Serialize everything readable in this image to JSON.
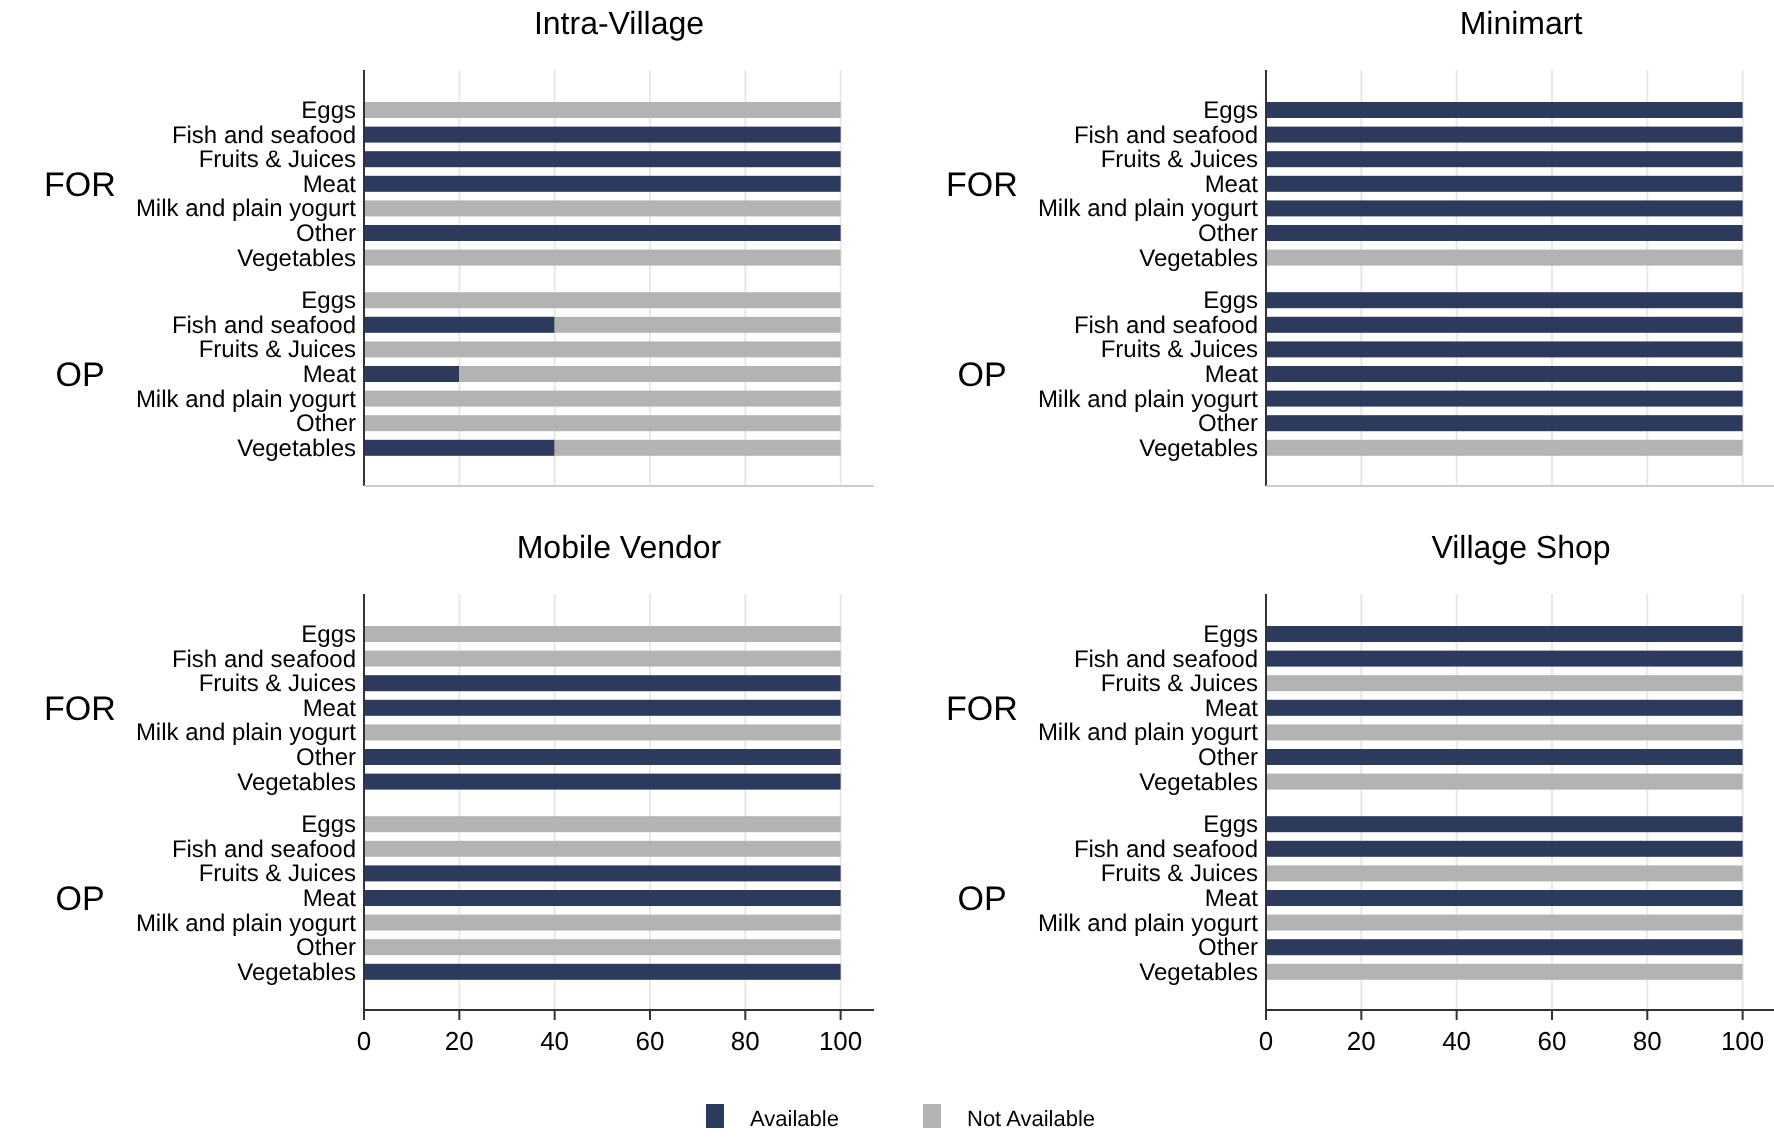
{
  "chart_data": [
    {
      "type": "bar",
      "title": "Intra-Village",
      "orientation": "horizontal",
      "stacked": true,
      "categories": [
        "Eggs",
        "Fish and seafood",
        "Fruits & Juices",
        "Meat",
        "Milk and plain yogurt",
        "Other",
        "Vegetables",
        "Eggs",
        "Fish and seafood",
        "Fruits & Juices",
        "Meat",
        "Milk and plain yogurt",
        "Other",
        "Vegetables"
      ],
      "annotations": [
        "FOR",
        "OP"
      ],
      "series": [
        {
          "color": "#2c3a5e",
          "values": [
            0,
            100,
            100,
            100,
            0,
            100,
            0,
            0,
            40,
            0,
            20,
            0,
            0,
            40
          ]
        },
        {
          "color": "#b3b3b3",
          "values": [
            100,
            0,
            0,
            0,
            100,
            0,
            100,
            100,
            60,
            100,
            80,
            100,
            100,
            60
          ]
        }
      ],
      "xlim": [
        0,
        107
      ],
      "xticks": [
        0,
        20,
        40,
        60,
        80,
        100
      ],
      "grid": "x",
      "tick_labels": "y"
    },
    {
      "type": "bar",
      "title": "Minimart",
      "orientation": "horizontal",
      "stacked": true,
      "categories": [
        "Eggs",
        "Fish and seafood",
        "Fruits & Juices",
        "Meat",
        "Milk and plain yogurt",
        "Other",
        "Vegetables",
        "Eggs",
        "Fish and seafood",
        "Fruits & Juices",
        "Meat",
        "Milk and plain yogurt",
        "Other",
        "Vegetables"
      ],
      "annotations": [
        "FOR",
        "OP"
      ],
      "series": [
        {
          "color": "#2c3a5e",
          "values": [
            100,
            100,
            100,
            100,
            100,
            100,
            0,
            100,
            100,
            100,
            100,
            100,
            100,
            0
          ]
        },
        {
          "color": "#b3b3b3",
          "values": [
            0,
            0,
            0,
            0,
            0,
            0,
            100,
            0,
            0,
            0,
            0,
            0,
            0,
            100
          ]
        }
      ],
      "xlim": [
        0,
        107
      ],
      "xticks": [
        0,
        20,
        40,
        60,
        80,
        100
      ],
      "grid": "x",
      "tick_labels": "y"
    },
    {
      "type": "bar",
      "title": "Mobile Vendor",
      "orientation": "horizontal",
      "stacked": true,
      "categories": [
        "Eggs",
        "Fish and seafood",
        "Fruits & Juices",
        "Meat",
        "Milk and plain yogurt",
        "Other",
        "Vegetables",
        "Eggs",
        "Fish and seafood",
        "Fruits & Juices",
        "Meat",
        "Milk and plain yogurt",
        "Other",
        "Vegetables"
      ],
      "annotations": [
        "FOR",
        "OP"
      ],
      "series": [
        {
          "name": "Available",
          "color": "#2c3a5e",
          "values": [
            0,
            0,
            100,
            100,
            0,
            100,
            100,
            0,
            0,
            100,
            100,
            0,
            0,
            100
          ]
        },
        {
          "name": "Not Available",
          "color": "#b3b3b3",
          "values": [
            100,
            100,
            0,
            0,
            100,
            0,
            0,
            100,
            100,
            0,
            0,
            100,
            100,
            0
          ]
        }
      ],
      "xlim": [
        0,
        107
      ],
      "xticks": [
        0,
        20,
        40,
        60,
        80,
        100
      ],
      "grid": "x",
      "legend": "bottom"
    },
    {
      "type": "bar",
      "title": "Village Shop",
      "orientation": "horizontal",
      "stacked": true,
      "categories": [
        "Eggs",
        "Fish and seafood",
        "Fruits & Juices",
        "Meat",
        "Milk and plain yogurt",
        "Other",
        "Vegetables",
        "Eggs",
        "Fish and seafood",
        "Fruits & Juices",
        "Meat",
        "Milk and plain yogurt",
        "Other",
        "Vegetables"
      ],
      "annotations": [
        "FOR",
        "OP"
      ],
      "series": [
        {
          "color": "#2c3a5e",
          "values": [
            100,
            100,
            0,
            100,
            0,
            100,
            0,
            100,
            100,
            0,
            100,
            0,
            100,
            0
          ]
        },
        {
          "color": "#b3b3b3",
          "values": [
            0,
            0,
            100,
            0,
            100,
            0,
            100,
            0,
            0,
            100,
            0,
            100,
            0,
            100
          ]
        }
      ],
      "xlim": [
        0,
        107
      ],
      "xticks": [
        0,
        20,
        40,
        60,
        80,
        100
      ],
      "grid": "x"
    }
  ]
}
